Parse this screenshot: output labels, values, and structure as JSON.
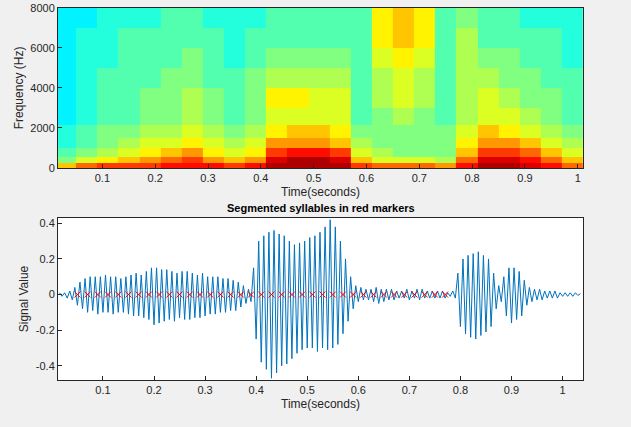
{
  "chart_data": [
    {
      "type": "heatmap",
      "xlabel": "Time(seconds)",
      "ylabel": "Frequency (Hz)",
      "color": "jet",
      "grid": false,
      "xlim": [
        0.016,
        1.01
      ],
      "xticks": [
        0.1,
        0.2,
        0.3,
        0.4,
        0.5,
        0.6,
        0.7,
        0.8,
        0.9,
        1
      ],
      "ylim": [
        0,
        8000
      ],
      "yticks": [
        0,
        2000,
        4000,
        6000,
        8000
      ],
      "zlim": [
        -0.5,
        10.5
      ],
      "x": [
        0.03,
        0.07,
        0.11,
        0.15,
        0.19,
        0.23,
        0.27,
        0.31,
        0.35,
        0.39,
        0.43,
        0.47,
        0.51,
        0.55,
        0.59,
        0.63,
        0.67,
        0.71,
        0.75,
        0.79,
        0.83,
        0.87,
        0.91,
        0.95,
        0.99
      ],
      "y": [
        125,
        375,
        750,
        1250,
        1750,
        2500,
        3500,
        4500,
        5500,
        6500,
        7500
      ],
      "cells": [
        [
          7,
          8,
          8.5,
          8.5,
          8.5,
          9,
          9,
          9,
          8.5,
          9,
          10,
          10,
          10,
          10,
          8.5,
          8,
          8,
          8,
          7.5,
          9,
          10,
          10,
          9.5,
          9,
          8
        ],
        [
          5,
          6,
          6.5,
          7,
          7.5,
          8,
          8.5,
          7.5,
          7,
          7.5,
          9.5,
          10,
          10,
          9.5,
          7,
          6,
          6,
          6,
          5.5,
          8,
          9.5,
          9.5,
          9,
          8,
          7
        ],
        [
          4.5,
          5,
          5.5,
          6,
          6.5,
          7,
          7.5,
          6.5,
          6,
          6.5,
          8.5,
          9,
          9,
          8.5,
          6,
          5.5,
          5,
          5,
          5,
          7,
          8.5,
          8.5,
          8,
          7,
          6
        ],
        [
          4,
          4.5,
          5,
          5.5,
          6,
          6,
          6.5,
          6,
          5.5,
          6,
          7.5,
          7.5,
          7.5,
          7,
          5.5,
          5,
          5,
          5,
          5,
          6.5,
          7.5,
          7.5,
          7,
          6,
          5.5
        ],
        [
          4,
          4.5,
          5,
          5,
          5.5,
          5.5,
          6,
          5.5,
          5,
          5.5,
          6.5,
          7,
          7,
          6.5,
          5,
          5,
          5,
          5,
          5,
          6,
          7,
          6.5,
          6,
          5.5,
          5
        ],
        [
          3.5,
          4,
          4.5,
          4.5,
          5,
          5,
          5.5,
          5,
          4.5,
          5,
          6,
          6,
          6,
          6,
          4.5,
          5,
          5.5,
          5,
          4.5,
          5.5,
          6,
          6,
          5.5,
          5,
          4.5
        ],
        [
          3.5,
          4,
          4.5,
          4.5,
          5,
          5,
          5.5,
          5,
          4.5,
          5,
          6.5,
          6.5,
          6,
          6,
          4.5,
          5.5,
          6,
          5.5,
          4.5,
          5.5,
          6,
          5.5,
          5,
          5,
          4.5
        ],
        [
          3.5,
          4,
          4.5,
          4.5,
          4.5,
          5,
          5,
          4.5,
          4.5,
          5,
          5.5,
          5.5,
          5.5,
          5.5,
          4.5,
          5.5,
          6,
          5.5,
          4.5,
          5.5,
          5.5,
          5,
          5,
          4.5,
          4.5
        ],
        [
          3.5,
          4,
          4,
          4.5,
          4.5,
          4.5,
          5,
          4.5,
          4,
          4.5,
          5,
          5,
          5,
          5,
          4.5,
          6,
          6.5,
          6,
          4.5,
          5.5,
          5,
          5,
          4.5,
          4.5,
          4
        ],
        [
          3.5,
          4,
          4,
          4.5,
          4.5,
          4.5,
          4.5,
          4.5,
          4,
          4.5,
          4.5,
          4.5,
          4.5,
          4.5,
          4.5,
          6.5,
          7,
          6.5,
          4.5,
          5.5,
          4.5,
          4.5,
          4.5,
          4.5,
          4
        ],
        [
          3.5,
          3.5,
          4,
          4,
          4,
          4.5,
          4.5,
          4,
          4,
          4,
          4.5,
          4.5,
          4.5,
          4.5,
          4.5,
          6.5,
          7,
          6.5,
          4.5,
          5,
          4.5,
          4.5,
          4,
          4,
          4
        ]
      ]
    },
    {
      "type": "line",
      "title": "Segmented syllables in red markers",
      "xlabel": "Time(seconds)",
      "ylabel": "Signal Value",
      "grid": false,
      "xlim": [
        0.012,
        1.04
      ],
      "xticks": [
        0.1,
        0.2,
        0.3,
        0.4,
        0.5,
        0.6,
        0.7,
        0.8,
        0.9,
        1
      ],
      "ylim": [
        -0.48,
        0.43
      ],
      "yticks": [
        -0.4,
        -0.2,
        0,
        0.2,
        0.4
      ],
      "series": [
        {
          "type": "line",
          "color": "#0072bd",
          "line_style": "solid",
          "x": [
            0.015,
            0.02,
            0.025,
            0.03,
            0.035,
            0.04,
            0.045,
            0.05,
            0.055,
            0.06,
            0.065,
            0.07,
            0.075,
            0.08,
            0.085,
            0.09,
            0.095,
            0.1,
            0.105,
            0.11,
            0.115,
            0.12,
            0.125,
            0.13,
            0.135,
            0.14,
            0.145,
            0.15,
            0.155,
            0.16,
            0.165,
            0.17,
            0.175,
            0.18,
            0.185,
            0.19,
            0.195,
            0.2,
            0.205,
            0.21,
            0.215,
            0.22,
            0.225,
            0.23,
            0.235,
            0.24,
            0.245,
            0.25,
            0.255,
            0.26,
            0.265,
            0.27,
            0.275,
            0.28,
            0.285,
            0.29,
            0.295,
            0.3,
            0.305,
            0.31,
            0.315,
            0.32,
            0.325,
            0.33,
            0.335,
            0.34,
            0.345,
            0.35,
            0.355,
            0.36,
            0.365,
            0.37,
            0.375,
            0.38,
            0.385,
            0.39,
            0.395,
            0.4,
            0.405,
            0.41,
            0.415,
            0.42,
            0.425,
            0.43,
            0.435,
            0.44,
            0.445,
            0.45,
            0.455,
            0.46,
            0.465,
            0.47,
            0.475,
            0.48,
            0.485,
            0.49,
            0.495,
            0.5,
            0.505,
            0.51,
            0.515,
            0.52,
            0.525,
            0.53,
            0.535,
            0.54,
            0.545,
            0.55,
            0.555,
            0.56,
            0.565,
            0.57,
            0.575,
            0.58,
            0.585,
            0.59,
            0.595,
            0.6,
            0.605,
            0.61,
            0.615,
            0.62,
            0.625,
            0.63,
            0.635,
            0.64,
            0.645,
            0.65,
            0.655,
            0.66,
            0.665,
            0.67,
            0.675,
            0.68,
            0.685,
            0.69,
            0.695,
            0.7,
            0.705,
            0.71,
            0.715,
            0.72,
            0.725,
            0.73,
            0.735,
            0.74,
            0.745,
            0.75,
            0.755,
            0.76,
            0.765,
            0.77,
            0.775,
            0.78,
            0.785,
            0.79,
            0.795,
            0.8,
            0.805,
            0.81,
            0.815,
            0.82,
            0.825,
            0.83,
            0.835,
            0.84,
            0.845,
            0.85,
            0.855,
            0.86,
            0.865,
            0.87,
            0.875,
            0.88,
            0.885,
            0.89,
            0.895,
            0.9,
            0.905,
            0.91,
            0.915,
            0.92,
            0.925,
            0.93,
            0.935,
            0.94,
            0.945,
            0.95,
            0.955,
            0.96,
            0.965,
            0.97,
            0.975,
            0.98,
            0.985,
            0.99,
            0.995,
            1,
            1.005,
            1.01,
            1.015,
            1.02,
            1.025,
            1.03,
            1.035
          ],
          "values": [
            0.01,
            -0.01,
            0.01,
            -0.02,
            0.02,
            -0.03,
            0.04,
            -0.06,
            0.07,
            -0.08,
            0.09,
            -0.1,
            0.1,
            -0.09,
            0.1,
            -0.11,
            0.1,
            -0.1,
            0.11,
            -0.1,
            0.1,
            -0.11,
            0.1,
            -0.1,
            0.09,
            -0.1,
            0.1,
            -0.11,
            0.11,
            -0.12,
            0.12,
            -0.12,
            0.11,
            -0.13,
            0.13,
            -0.14,
            0.15,
            -0.17,
            0.15,
            -0.16,
            0.14,
            -0.15,
            0.14,
            -0.14,
            0.13,
            -0.15,
            0.12,
            -0.13,
            0.13,
            -0.14,
            0.13,
            -0.14,
            0.12,
            -0.13,
            0.11,
            -0.13,
            0.12,
            -0.12,
            0.1,
            -0.11,
            0.1,
            -0.11,
            0.1,
            -0.1,
            0.09,
            -0.1,
            0.09,
            -0.09,
            0.08,
            -0.09,
            0.07,
            -0.07,
            0.05,
            -0.05,
            0.03,
            -0.04,
            0.15,
            -0.25,
            0.3,
            -0.38,
            0.33,
            -0.42,
            0.35,
            -0.47,
            0.36,
            -0.44,
            0.34,
            -0.4,
            0.33,
            -0.39,
            0.3,
            -0.36,
            0.28,
            -0.33,
            0.29,
            -0.31,
            0.3,
            -0.3,
            0.32,
            -0.3,
            0.33,
            -0.32,
            0.35,
            -0.3,
            0.38,
            -0.31,
            0.42,
            -0.3,
            0.38,
            -0.28,
            0.3,
            -0.22,
            0.2,
            -0.15,
            0.1,
            -0.08,
            0.05,
            -0.04,
            0.04,
            -0.03,
            0.03,
            -0.03,
            0.03,
            -0.04,
            0.04,
            -0.05,
            0.03,
            -0.04,
            0.03,
            -0.03,
            0.03,
            -0.03,
            0.02,
            -0.02,
            0.02,
            -0.02,
            0.03,
            -0.03,
            0.02,
            -0.02,
            0.03,
            -0.03,
            0.03,
            -0.02,
            0.02,
            -0.02,
            0.02,
            -0.02,
            0.02,
            -0.02,
            0.02,
            -0.02,
            0.01,
            -0.01,
            0.02,
            -0.02,
            0.12,
            -0.18,
            0.2,
            -0.22,
            0.22,
            -0.24,
            0.23,
            -0.25,
            0.24,
            -0.23,
            0.22,
            -0.21,
            0.2,
            -0.18,
            0.12,
            -0.08,
            0.05,
            -0.04,
            0.1,
            -0.12,
            0.15,
            -0.16,
            0.15,
            -0.14,
            0.13,
            -0.12,
            0.08,
            -0.06,
            0.04,
            -0.04,
            0.03,
            -0.03,
            0.03,
            -0.03,
            0.02,
            -0.02,
            0.02,
            -0.02,
            0.02,
            -0.02,
            0.01,
            -0.01,
            0.01,
            -0.01,
            0.01,
            -0.01,
            0.01,
            -0.005,
            0.005
          ]
        },
        {
          "type": "scatter",
          "color": "#ff0000",
          "marker": "x",
          "x": [
            0.05,
            0.07,
            0.09,
            0.11,
            0.13,
            0.15,
            0.17,
            0.19,
            0.21,
            0.23,
            0.25,
            0.27,
            0.29,
            0.31,
            0.33,
            0.35,
            0.37,
            0.39,
            0.41,
            0.43,
            0.45,
            0.47,
            0.49,
            0.51,
            0.53,
            0.55,
            0.57,
            0.59,
            0.61,
            0.63,
            0.65,
            0.67,
            0.69,
            0.71,
            0.73,
            0.75,
            0.77
          ],
          "values": [
            0,
            0,
            0,
            0,
            0,
            0,
            0,
            0,
            0,
            0,
            0,
            0,
            0,
            0,
            0,
            0,
            0,
            0,
            0,
            0,
            0,
            0,
            0,
            0,
            0,
            0,
            0,
            0,
            0,
            0,
            0,
            0,
            0,
            0,
            0,
            0,
            0
          ]
        }
      ]
    }
  ]
}
